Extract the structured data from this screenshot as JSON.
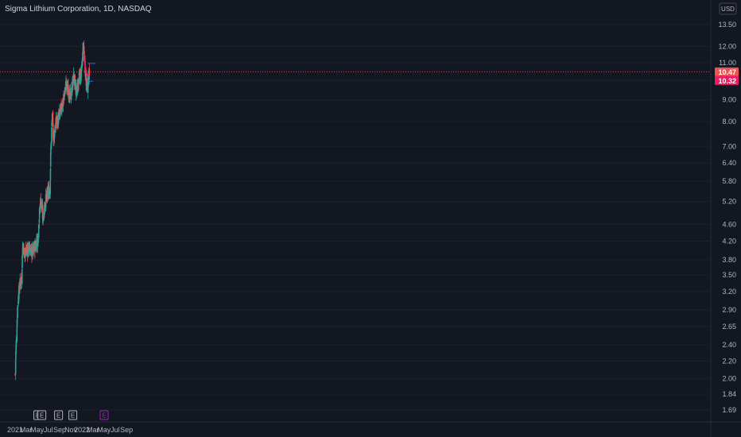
{
  "header": {
    "title": "Sigma Lithium Corporation, 1D, NASDAQ",
    "currency": "USD"
  },
  "colors": {
    "background": "#131722",
    "bull": "#26a69a",
    "bear": "#ef5350",
    "ema": "#e91e63",
    "levels": "#2962ff",
    "price_line": "#ef5350",
    "earnings_past": "#b2b5be",
    "earnings_future": "#9c27b0"
  },
  "chart_data": {
    "type": "candlestick",
    "title": "Sigma Lithium Corporation, 1D, NASDAQ",
    "scale": "log",
    "ylim": [
      1.6,
      15.0
    ],
    "y_ticks": [
      "13.50",
      "12.00",
      "11.00",
      "10.00",
      "9.00",
      "8.00",
      "7.00",
      "6.40",
      "5.80",
      "5.20",
      "4.60",
      "4.20",
      "3.80",
      "3.50",
      "3.20",
      "2.90",
      "2.65",
      "2.40",
      "2.20",
      "2.00",
      "1.84",
      "1.69"
    ],
    "x_ticks": [
      "2021",
      "Mar",
      "May",
      "Jul",
      "Sep",
      "Nov",
      "2022",
      "Mar",
      "May",
      "Jul",
      "Sep"
    ],
    "price_tags": [
      {
        "label": "10.47",
        "value": 10.47
      },
      {
        "label": "10.32",
        "value": 10.32
      }
    ],
    "levels": [
      {
        "value": 10.95,
        "from": "2022-02-01",
        "to": "2022-03-15"
      },
      {
        "value": 9.95,
        "from": "2022-02-01",
        "to": "2022-03-03"
      }
    ],
    "earnings": [
      {
        "label": "E",
        "date": "2021-05-05",
        "status": "past"
      },
      {
        "label": "E",
        "date": "2021-05-27",
        "status": "past"
      },
      {
        "label": "E",
        "date": "2021-08-26",
        "status": "past"
      },
      {
        "label": "E",
        "date": "2021-11-12",
        "status": "past"
      },
      {
        "label": "E",
        "date": "2022-05-02",
        "status": "upcoming"
      }
    ],
    "anchors": [
      {
        "date": "2021-01-01",
        "close": 2.05
      },
      {
        "date": "2021-01-08",
        "close": 2.5
      },
      {
        "date": "2021-01-15",
        "close": 3.0
      },
      {
        "date": "2021-01-25",
        "close": 3.3
      },
      {
        "date": "2021-02-05",
        "close": 3.45
      },
      {
        "date": "2021-02-12",
        "close": 4.15
      },
      {
        "date": "2021-02-20",
        "close": 3.95
      },
      {
        "date": "2021-03-05",
        "close": 4.0
      },
      {
        "date": "2021-03-20",
        "close": 4.05
      },
      {
        "date": "2021-04-05",
        "close": 3.95
      },
      {
        "date": "2021-04-20",
        "close": 4.1
      },
      {
        "date": "2021-05-05",
        "close": 4.25
      },
      {
        "date": "2021-05-15",
        "close": 4.95
      },
      {
        "date": "2021-05-22",
        "close": 5.3
      },
      {
        "date": "2021-06-01",
        "close": 4.75
      },
      {
        "date": "2021-06-15",
        "close": 5.2
      },
      {
        "date": "2021-06-30",
        "close": 5.45
      },
      {
        "date": "2021-07-10",
        "close": 5.5
      },
      {
        "date": "2021-07-16",
        "close": 7.2
      },
      {
        "date": "2021-07-22",
        "close": 8.2
      },
      {
        "date": "2021-07-30",
        "close": 7.3
      },
      {
        "date": "2021-08-10",
        "close": 7.9
      },
      {
        "date": "2021-08-25",
        "close": 8.1
      },
      {
        "date": "2021-09-10",
        "close": 8.6
      },
      {
        "date": "2021-09-25",
        "close": 9.1
      },
      {
        "date": "2021-10-05",
        "close": 9.8
      },
      {
        "date": "2021-10-20",
        "close": 9.4
      },
      {
        "date": "2021-11-01",
        "close": 9.1
      },
      {
        "date": "2021-11-15",
        "close": 10.2
      },
      {
        "date": "2021-12-01",
        "close": 9.4
      },
      {
        "date": "2021-12-15",
        "close": 10.0
      },
      {
        "date": "2022-01-01",
        "close": 10.6
      },
      {
        "date": "2022-01-07",
        "close": 12.0
      },
      {
        "date": "2022-01-15",
        "close": 11.2
      },
      {
        "date": "2022-01-25",
        "close": 9.8
      },
      {
        "date": "2022-02-01",
        "close": 9.6
      },
      {
        "date": "2022-02-10",
        "close": 10.47
      }
    ],
    "ema": [
      {
        "date": "2022-01-10",
        "value": 11.5
      },
      {
        "date": "2022-01-18",
        "value": 10.9
      },
      {
        "date": "2022-01-25",
        "value": 10.4
      },
      {
        "date": "2022-02-01",
        "value": 10.25
      },
      {
        "date": "2022-02-10",
        "value": 10.32
      }
    ]
  }
}
